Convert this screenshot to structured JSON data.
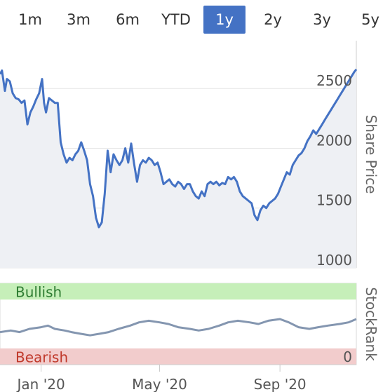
{
  "range_selector": {
    "buttons": [
      {
        "label": "1m",
        "active": false
      },
      {
        "label": "3m",
        "active": false
      },
      {
        "label": "6m",
        "active": false
      },
      {
        "label": "YTD",
        "active": false
      },
      {
        "label": "1y",
        "active": true
      },
      {
        "label": "2y",
        "active": false
      },
      {
        "label": "3y",
        "active": false
      },
      {
        "label": "5y",
        "active": false
      }
    ]
  },
  "colors": {
    "price_line": "#4472c4",
    "price_fill": "#eef0f4",
    "stockrank_line": "#8496b0",
    "bullish_band": "#c6efb9",
    "bearish_band": "#f2cccc",
    "bullish_text": "#2e7d32",
    "bearish_text": "#c0392b",
    "active_button": "#4472c4"
  },
  "chart_data": [
    {
      "type": "area",
      "ylabel": "Share Price",
      "ylim": [
        1000,
        2900
      ],
      "yticks": [
        1000,
        1500,
        2000,
        2500
      ],
      "xlim": [
        "2019-11-20",
        "2020-11-18"
      ],
      "series": [
        {
          "x": [
            "2019-11-20",
            "2019-11-22",
            "2019-11-25",
            "2019-11-27",
            "2019-11-30",
            "2019-12-03",
            "2019-12-06",
            "2019-12-09",
            "2019-12-12",
            "2019-12-15",
            "2019-12-18",
            "2019-12-21",
            "2019-12-24",
            "2019-12-27",
            "2019-12-30",
            "2020-01-02",
            "2020-01-04",
            "2020-01-06",
            "2020-01-09",
            "2020-01-12",
            "2020-01-15",
            "2020-01-18",
            "2020-01-21",
            "2020-01-24",
            "2020-01-27",
            "2020-01-30",
            "2020-02-02",
            "2020-02-05",
            "2020-02-08",
            "2020-02-11",
            "2020-02-14",
            "2020-02-17",
            "2020-02-20",
            "2020-02-23",
            "2020-02-26",
            "2020-02-29",
            "2020-03-03",
            "2020-03-06",
            "2020-03-09",
            "2020-03-12",
            "2020-03-15",
            "2020-03-18",
            "2020-03-21",
            "2020-03-24",
            "2020-03-27",
            "2020-03-30",
            "2020-04-02",
            "2020-04-05",
            "2020-04-08",
            "2020-04-11",
            "2020-04-14",
            "2020-04-17",
            "2020-04-20",
            "2020-04-23",
            "2020-04-26",
            "2020-04-29",
            "2020-05-02",
            "2020-05-05",
            "2020-05-08",
            "2020-05-11",
            "2020-05-14",
            "2020-05-17",
            "2020-05-20",
            "2020-05-23",
            "2020-05-26",
            "2020-05-29",
            "2020-06-01",
            "2020-06-04",
            "2020-06-07",
            "2020-06-10",
            "2020-06-13",
            "2020-06-16",
            "2020-06-19",
            "2020-06-22",
            "2020-06-25",
            "2020-06-28",
            "2020-07-01",
            "2020-07-04",
            "2020-07-07",
            "2020-07-10",
            "2020-07-13",
            "2020-07-16",
            "2020-07-19",
            "2020-07-22",
            "2020-07-25",
            "2020-07-28",
            "2020-07-31",
            "2020-08-03",
            "2020-08-06",
            "2020-08-09",
            "2020-08-12",
            "2020-08-15",
            "2020-08-18",
            "2020-08-21",
            "2020-08-24",
            "2020-08-27",
            "2020-08-30",
            "2020-09-02",
            "2020-09-05",
            "2020-09-08",
            "2020-09-11",
            "2020-09-14",
            "2020-09-17",
            "2020-09-20",
            "2020-09-23",
            "2020-09-26",
            "2020-09-29",
            "2020-10-02",
            "2020-10-05",
            "2020-10-08",
            "2020-10-11",
            "2020-10-14",
            "2020-10-17",
            "2020-10-20",
            "2020-10-23",
            "2020-10-26",
            "2020-10-29",
            "2020-11-01",
            "2020-11-04",
            "2020-11-07",
            "2020-11-10",
            "2020-11-13",
            "2020-11-16",
            "2020-11-18"
          ],
          "y": [
            2620,
            2650,
            2480,
            2580,
            2560,
            2460,
            2420,
            2410,
            2380,
            2400,
            2200,
            2300,
            2350,
            2410,
            2460,
            2580,
            2380,
            2300,
            2420,
            2400,
            2380,
            2380,
            2050,
            1950,
            1880,
            1920,
            1900,
            1950,
            1980,
            2050,
            1980,
            1900,
            1700,
            1600,
            1420,
            1340,
            1380,
            1620,
            1980,
            1800,
            1950,
            1900,
            1860,
            1900,
            2000,
            1880,
            2040,
            1870,
            1720,
            1860,
            1900,
            1880,
            1920,
            1900,
            1860,
            1880,
            1800,
            1700,
            1720,
            1740,
            1700,
            1680,
            1720,
            1700,
            1660,
            1700,
            1700,
            1640,
            1600,
            1580,
            1640,
            1600,
            1700,
            1720,
            1700,
            1720,
            1690,
            1710,
            1700,
            1760,
            1740,
            1760,
            1720,
            1640,
            1600,
            1580,
            1560,
            1540,
            1440,
            1400,
            1480,
            1520,
            1500,
            1540,
            1560,
            1580,
            1620,
            1680,
            1740,
            1800,
            1780,
            1860,
            1900,
            1940,
            1960,
            2000,
            2060,
            2100,
            2150,
            2120,
            2160,
            2200,
            2240,
            2280,
            2320,
            2360,
            2400,
            2440,
            2480,
            2520,
            2560,
            2600,
            2640,
            2660
          ],
          "note": ""
        }
      ]
    },
    {
      "type": "line",
      "ylabel": "StockRank",
      "ylim": [
        0,
        100
      ],
      "yticks": [
        0
      ],
      "zones": [
        {
          "label": "Bullish",
          "from": 80,
          "to": 100
        },
        {
          "label": "Bearish",
          "from": 0,
          "to": 20
        }
      ],
      "xticks": [
        {
          "label": "Jan '20",
          "date": "2020-01-01"
        },
        {
          "label": "May '20",
          "date": "2020-05-01"
        },
        {
          "label": "Sep '20",
          "date": "2020-09-01"
        }
      ],
      "series": [
        {
          "x": [
            "2019-11-20",
            "2019-12-01",
            "2019-12-10",
            "2019-12-20",
            "2020-01-01",
            "2020-01-08",
            "2020-01-15",
            "2020-01-25",
            "2020-02-01",
            "2020-02-10",
            "2020-02-20",
            "2020-03-01",
            "2020-03-10",
            "2020-03-20",
            "2020-04-01",
            "2020-04-10",
            "2020-04-20",
            "2020-05-01",
            "2020-05-10",
            "2020-05-20",
            "2020-06-01",
            "2020-06-10",
            "2020-06-20",
            "2020-07-01",
            "2020-07-10",
            "2020-07-20",
            "2020-08-01",
            "2020-08-10",
            "2020-08-20",
            "2020-09-01",
            "2020-09-10",
            "2020-09-20",
            "2020-10-01",
            "2020-10-10",
            "2020-10-20",
            "2020-11-01",
            "2020-11-10",
            "2020-11-18"
          ],
          "y": [
            40,
            42,
            40,
            44,
            46,
            48,
            44,
            42,
            40,
            38,
            36,
            38,
            40,
            44,
            48,
            52,
            54,
            52,
            50,
            46,
            44,
            42,
            44,
            48,
            52,
            54,
            52,
            50,
            54,
            56,
            52,
            46,
            44,
            46,
            48,
            50,
            52,
            56
          ]
        }
      ]
    }
  ]
}
